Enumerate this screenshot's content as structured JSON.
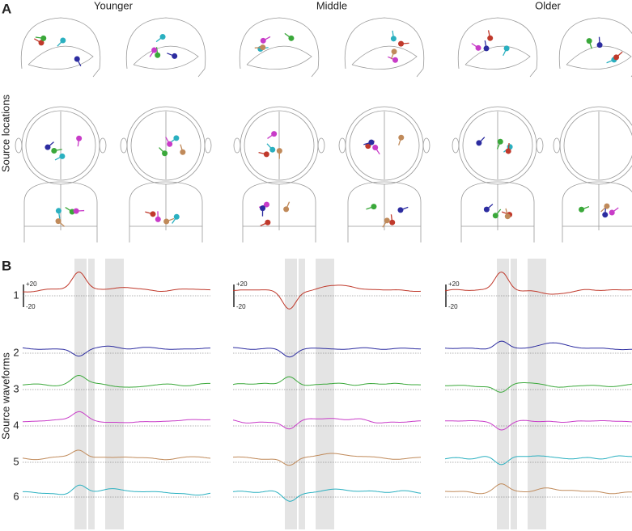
{
  "panel_a": {
    "label": "A",
    "columns": [
      "Younger",
      "Middle",
      "Older"
    ],
    "row_label": "Source locations"
  },
  "panel_b": {
    "label": "B",
    "row_label": "Source waveforms",
    "sources": [
      "1",
      "2",
      "3",
      "4",
      "5",
      "6"
    ],
    "traces": [
      {
        "scale_top": "+20",
        "scale_bottom": "-20",
        "colors": [
          "#c0392b",
          "#2c2ca0",
          "#3aa83a",
          "#c83cc8",
          "#c08a5a",
          "#2ab0c0"
        ]
      },
      {
        "scale_top": "+20",
        "scale_bottom": "-20",
        "colors": [
          "#c0392b",
          "#2c2ca0",
          "#3aa83a",
          "#c83cc8",
          "#c08a5a",
          "#2ab0c0"
        ]
      },
      {
        "scale_top": "+20",
        "scale_bottom": "-20",
        "colors": [
          "#c0392b",
          "#2c2ca0",
          "#3aa83a",
          "#c83cc8",
          "#2ab0c0",
          "#c08a5a"
        ]
      }
    ]
  }
}
